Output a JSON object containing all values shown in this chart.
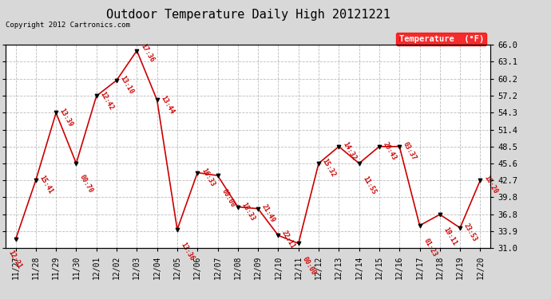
{
  "title": "Outdoor Temperature Daily High 20121221",
  "copyright": "Copyright 2012 Cartronics.com",
  "legend_label": "Temperature  (°F)",
  "background_color": "#d8d8d8",
  "plot_bg_color": "#ffffff",
  "line_color": "#cc0000",
  "marker_color": "#000000",
  "ylim": [
    31.0,
    66.0
  ],
  "yticks": [
    31.0,
    33.9,
    36.8,
    39.8,
    42.7,
    45.6,
    48.5,
    51.4,
    54.3,
    57.2,
    60.2,
    63.1,
    66.0
  ],
  "dates": [
    "11/27",
    "11/28",
    "11/29",
    "11/30",
    "12/01",
    "12/02",
    "12/03",
    "12/04",
    "12/05",
    "12/06",
    "12/07",
    "12/08",
    "12/09",
    "12/10",
    "12/11",
    "12/12",
    "12/13",
    "12/14",
    "12/15",
    "12/16",
    "12/17",
    "12/18",
    "12/19",
    "12/20"
  ],
  "values": [
    32.5,
    42.7,
    54.3,
    45.6,
    57.2,
    59.9,
    65.0,
    56.5,
    34.2,
    44.0,
    43.5,
    38.1,
    37.8,
    33.2,
    31.8,
    45.6,
    48.5,
    45.6,
    48.5,
    48.5,
    34.9,
    36.8,
    34.5,
    42.7
  ],
  "labels": [
    "12:21",
    "15:41",
    "13:39",
    "00:70",
    "12:42",
    "13:10",
    "17:36",
    "13:44",
    "13:36",
    "16:33",
    "00:00",
    "18:33",
    "21:49",
    "22:11",
    "00:00",
    "15:32",
    "14:32",
    "11:55",
    "20:43",
    "03:37",
    "01:23",
    "19:11",
    "23:53",
    "10:20"
  ]
}
